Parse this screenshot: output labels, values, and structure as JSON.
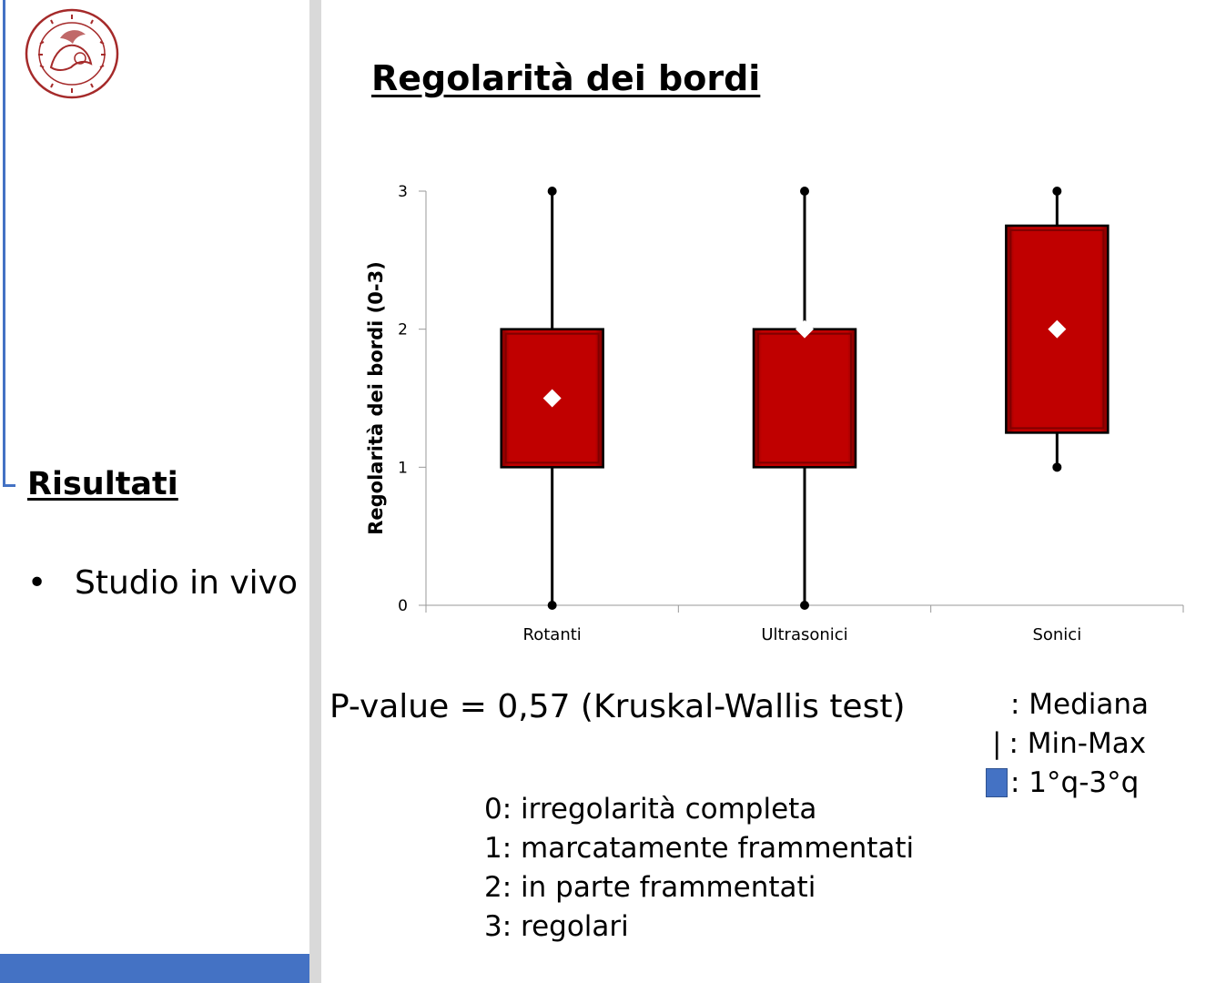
{
  "slide": {
    "title": "Regolarità dei bordi",
    "section": "Risultati",
    "bullet": "Studio in vivo",
    "bullet_marker": "•",
    "pvalue": "P-value = 0,57 (Kruskal-Wallis test)",
    "legend": {
      "median": ": Mediana",
      "minmax_glyph": "|",
      "minmax": ": Min-Max",
      "quartiles": ": 1°q-3°q"
    },
    "scale": [
      "0: irregolarità completa",
      "1: marcatamente frammentati",
      "2: in parte frammentati",
      "3: regolari"
    ],
    "logo": "seal-icon"
  },
  "colors": {
    "accent": "#4472c4",
    "box_fill": "#c00000",
    "box_border": "#7f0000",
    "divider": "#d9d9d9",
    "seal": "#a52a2a"
  },
  "chart_data": {
    "type": "box",
    "title": "",
    "xlabel": "",
    "ylabel": "Regolarità dei bordi (0-3)",
    "ylim": [
      0,
      3
    ],
    "yticks": [
      0,
      1,
      2,
      3
    ],
    "grid": false,
    "categories": [
      "Rotanti",
      "Ultrasonici",
      "Sonici"
    ],
    "series": [
      {
        "category": "Rotanti",
        "min": 0,
        "q1": 1,
        "median": 1.5,
        "q3": 2,
        "max": 3
      },
      {
        "category": "Ultrasonici",
        "min": 0,
        "q1": 1,
        "median": 2,
        "q3": 2,
        "max": 3
      },
      {
        "category": "Sonici",
        "min": 1,
        "q1": 1.25,
        "median": 2,
        "q3": 2.75,
        "max": 3
      }
    ]
  }
}
